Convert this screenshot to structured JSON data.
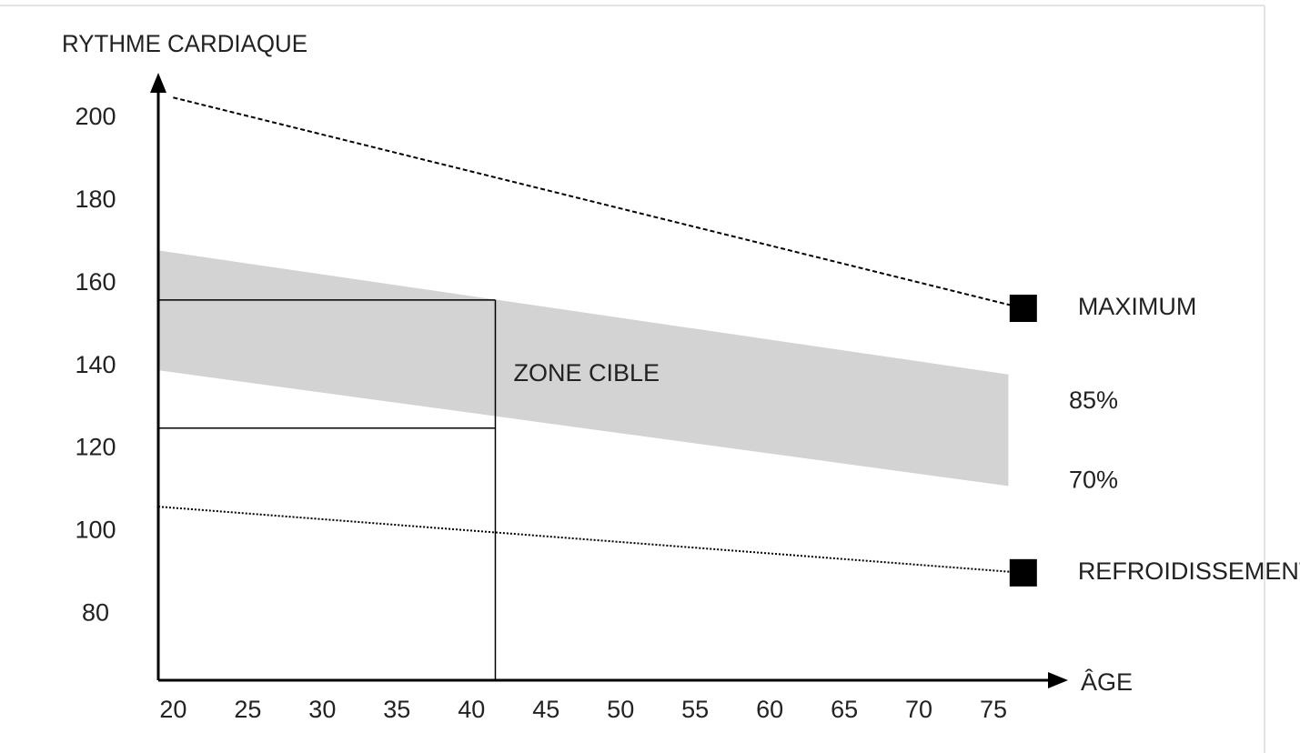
{
  "chart_data": {
    "type": "line",
    "x_label": "ÂGE",
    "y_label": "RYTHME CARDIAQUE",
    "xlim": [
      19,
      80
    ],
    "ylim": [
      64,
      211
    ],
    "xticks": [
      20,
      25,
      30,
      35,
      40,
      45,
      50,
      55,
      60,
      65,
      70,
      75
    ],
    "yticks": [
      80,
      100,
      120,
      140,
      160,
      180,
      200
    ],
    "grid": false,
    "series": [
      {
        "name": "MAXIMUM",
        "color": "#000000",
        "style": "dashed",
        "marker": "square",
        "x": [
          20,
          77
        ],
        "values": [
          205,
          154
        ]
      },
      {
        "name": "85%",
        "color": "#d3d3d3",
        "style": "band",
        "x": [
          19,
          76
        ],
        "values": [
          168,
          138
        ]
      },
      {
        "name": "70%",
        "color": "#d3d3d3",
        "style": "band",
        "x": [
          19,
          76
        ],
        "values": [
          139,
          111
        ]
      },
      {
        "name": "REFROIDISSEMENT",
        "color": "#000000",
        "style": "dotted",
        "marker": "square",
        "x": [
          19,
          77
        ],
        "values": [
          106,
          90
        ]
      }
    ],
    "zone": {
      "label": "ZONE CIBLE",
      "x": 41.6,
      "low": 125,
      "high": 156
    }
  }
}
